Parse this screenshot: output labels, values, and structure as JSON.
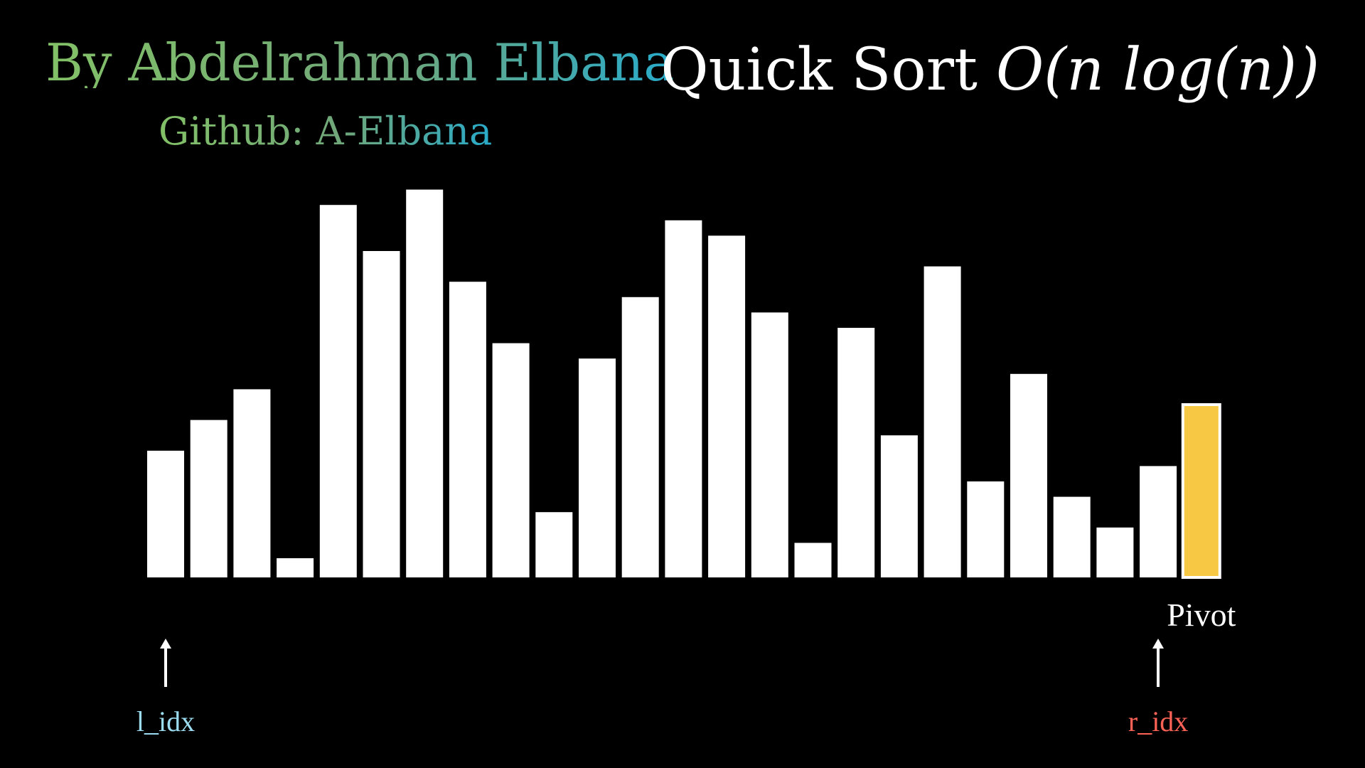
{
  "header": {
    "author": "By Abdelrahman Elbana",
    "github": "Github: A-Elbana",
    "title_text": "Quick Sort",
    "title_complexity": "O(n log(n))"
  },
  "colors": {
    "background": "#000000",
    "bar": "#ffffff",
    "pivot_fill": "#f7c843",
    "pivot_stroke": "#ffffff",
    "l_idx": "#9cdcf0",
    "r_idx": "#fc6255",
    "author_gradient_start": "#83c167",
    "author_gradient_end": "#29abca"
  },
  "markers": {
    "left_label": "l_idx",
    "right_label": "r_idx",
    "pivot_label": "Pivot",
    "left_bar_index": 0,
    "right_bar_index": 23,
    "pivot_bar_index": 24
  },
  "chart_data": {
    "type": "bar",
    "title": "",
    "xlabel": "",
    "ylabel": "",
    "ylim": [
      0,
      100
    ],
    "grid": false,
    "axes_visible": false,
    "highlight": {
      "index": 24,
      "role": "pivot",
      "color": "#f7c843"
    },
    "values": [
      33,
      41,
      49,
      5,
      97,
      85,
      101,
      77,
      61,
      17,
      57,
      73,
      93,
      89,
      69,
      9,
      65,
      37,
      81,
      25,
      53,
      21,
      13,
      29,
      45
    ]
  }
}
